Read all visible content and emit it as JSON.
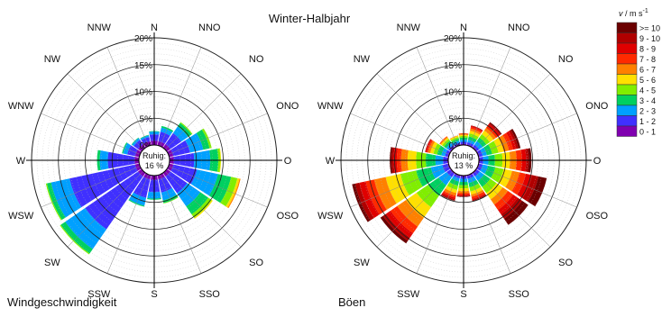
{
  "title": "Winter-Halbjahr",
  "legend": {
    "unit_v": "v",
    "unit_rest": " / m s",
    "unit_exp": "-1",
    "items": [
      {
        "label": ">= 10",
        "color": "#6b0000"
      },
      {
        "label": "9 - 10",
        "color": "#b00000"
      },
      {
        "label": "8 - 9",
        "color": "#e00000"
      },
      {
        "label": "7 - 8",
        "color": "#ff2a00"
      },
      {
        "label": "6 - 7",
        "color": "#ff8000"
      },
      {
        "label": "5 - 6",
        "color": "#ffe000"
      },
      {
        "label": "4 - 5",
        "color": "#80ee00"
      },
      {
        "label": "3 - 4",
        "color": "#00d060"
      },
      {
        "label": "2 - 3",
        "color": "#00a0ff"
      },
      {
        "label": "1 - 2",
        "color": "#4030ff"
      },
      {
        "label": "0 - 1",
        "color": "#8000b0"
      }
    ]
  },
  "directions": [
    "N",
    "NNO",
    "NO",
    "ONO",
    "O",
    "OSO",
    "SO",
    "SSO",
    "S",
    "SSW",
    "SW",
    "WSW",
    "W",
    "WNW",
    "NW",
    "NNW"
  ],
  "radial_ticks": [
    "5%",
    "10%",
    "15%",
    "20%"
  ],
  "chart_data": [
    {
      "type": "polar-stacked-bar",
      "label": "Windgeschwindigkeit",
      "calm_label": "Ruhig:",
      "calm_value": "16 %",
      "rlim": [
        0,
        20
      ],
      "directions": [
        "N",
        "NNO",
        "NO",
        "ONO",
        "O",
        "OSO",
        "SO",
        "SSO",
        "S",
        "SSW",
        "SW",
        "WSW",
        "W",
        "WNW",
        "NW",
        "NNW"
      ],
      "speed_classes": [
        "0 - 1",
        "1 - 2",
        "2 - 3",
        "3 - 4",
        "4 - 5",
        "5 - 6",
        "6 - 7",
        "7 - 8",
        "8 - 9",
        "9 - 10",
        ">= 10"
      ],
      "frequencies_percent": [
        [
          0.8,
          1.2,
          0.5,
          0.1,
          0,
          0,
          0,
          0,
          0,
          0,
          0
        ],
        [
          0.8,
          1.8,
          0.8,
          0.3,
          0,
          0,
          0,
          0,
          0,
          0,
          0
        ],
        [
          0.8,
          2.5,
          1.5,
          0.8,
          0.2,
          0,
          0,
          0,
          0,
          0,
          0
        ],
        [
          0.8,
          3.2,
          2.5,
          1.2,
          0.4,
          0,
          0,
          0,
          0,
          0,
          0
        ],
        [
          0.8,
          3.8,
          3.0,
          1.5,
          0.4,
          0.1,
          0,
          0,
          0,
          0,
          0
        ],
        [
          0.8,
          4.5,
          4.0,
          2.5,
          1.2,
          0.4,
          0.2,
          0,
          0,
          0,
          0
        ],
        [
          0.8,
          3.8,
          3.0,
          1.8,
          0.8,
          0.2,
          0,
          0,
          0,
          0,
          0
        ],
        [
          0.8,
          2.5,
          1.5,
          0.5,
          0.1,
          0,
          0,
          0,
          0,
          0,
          0
        ],
        [
          0.8,
          2.3,
          1.2,
          0.2,
          0,
          0,
          0,
          0,
          0,
          0,
          0
        ],
        [
          0.8,
          3.5,
          1.5,
          0.2,
          0,
          0,
          0,
          0,
          0,
          0,
          0
        ],
        [
          0.8,
          12.0,
          4.5,
          1.0,
          0.2,
          0,
          0,
          0,
          0,
          0,
          0
        ],
        [
          0.8,
          12.5,
          3.5,
          0.8,
          0.2,
          0,
          0,
          0,
          0,
          0,
          0
        ],
        [
          0.8,
          5.0,
          1.5,
          0.5,
          0,
          0,
          0,
          0,
          0,
          0,
          0
        ],
        [
          0.8,
          1.5,
          0.8,
          0.2,
          0,
          0,
          0,
          0,
          0,
          0,
          0
        ],
        [
          0.8,
          1.0,
          0.4,
          0.1,
          0,
          0,
          0,
          0,
          0,
          0,
          0
        ],
        [
          0.8,
          0.8,
          0.3,
          0.1,
          0,
          0,
          0,
          0,
          0,
          0,
          0
        ]
      ]
    },
    {
      "type": "polar-stacked-bar",
      "label": "Böen",
      "calm_label": "Ruhig:",
      "calm_value": "13 %",
      "rlim": [
        0,
        20
      ],
      "directions": [
        "N",
        "NNO",
        "NO",
        "ONO",
        "O",
        "OSO",
        "SO",
        "SSO",
        "S",
        "SSW",
        "SW",
        "WSW",
        "W",
        "WNW",
        "NW",
        "NNW"
      ],
      "speed_classes": [
        "0 - 1",
        "1 - 2",
        "2 - 3",
        "3 - 4",
        "4 - 5",
        "5 - 6",
        "6 - 7",
        "7 - 8",
        "8 - 9",
        "9 - 10",
        ">= 10"
      ],
      "frequencies_percent": [
        [
          0.2,
          0.4,
          0.4,
          0.4,
          0.3,
          0.2,
          0.2,
          0.1,
          0,
          0,
          0
        ],
        [
          0.2,
          0.4,
          0.5,
          0.6,
          0.6,
          0.5,
          0.4,
          0.3,
          0.2,
          0.1,
          0
        ],
        [
          0.2,
          0.5,
          0.8,
          0.8,
          0.8,
          0.8,
          0.6,
          0.5,
          0.4,
          0.2,
          0.2
        ],
        [
          0.2,
          0.6,
          0.8,
          1.0,
          1.2,
          1.0,
          1.0,
          0.8,
          0.6,
          0.4,
          0.4
        ],
        [
          0.2,
          0.6,
          1.0,
          1.2,
          1.4,
          1.4,
          1.2,
          1.0,
          0.8,
          0.5,
          0.5
        ],
        [
          0.2,
          0.6,
          1.0,
          1.4,
          1.6,
          1.6,
          1.4,
          1.2,
          1.2,
          1.2,
          1.6
        ],
        [
          0.2,
          0.6,
          1.0,
          1.4,
          1.4,
          1.4,
          1.2,
          1.2,
          1.0,
          1.0,
          1.4
        ],
        [
          0.2,
          0.5,
          0.8,
          0.8,
          0.8,
          0.6,
          0.4,
          0.4,
          0.2,
          0.2,
          0.1
        ],
        [
          0.2,
          0.4,
          0.6,
          0.6,
          0.6,
          0.5,
          0.4,
          0.3,
          0.2,
          0.1,
          0.1
        ],
        [
          0.2,
          0.4,
          0.6,
          0.8,
          0.8,
          0.6,
          0.5,
          0.4,
          0.3,
          0.2,
          0.1
        ],
        [
          0.2,
          0.8,
          1.8,
          2.4,
          2.6,
          2.4,
          2.0,
          1.5,
          1.0,
          0.7,
          0.6
        ],
        [
          0.2,
          1.0,
          2.2,
          2.8,
          3.0,
          2.8,
          2.2,
          1.6,
          1.2,
          0.8,
          0.6
        ],
        [
          0.2,
          0.8,
          1.4,
          1.8,
          1.8,
          1.6,
          1.2,
          0.8,
          0.6,
          0.4,
          0.3
        ],
        [
          0.2,
          0.5,
          0.7,
          0.8,
          0.7,
          0.6,
          0.4,
          0.3,
          0.2,
          0.1,
          0
        ],
        [
          0.2,
          0.4,
          0.5,
          0.5,
          0.4,
          0.3,
          0.2,
          0.1,
          0,
          0,
          0
        ],
        [
          0.2,
          0.3,
          0.4,
          0.4,
          0.3,
          0.2,
          0.1,
          0,
          0,
          0,
          0
        ]
      ]
    }
  ]
}
